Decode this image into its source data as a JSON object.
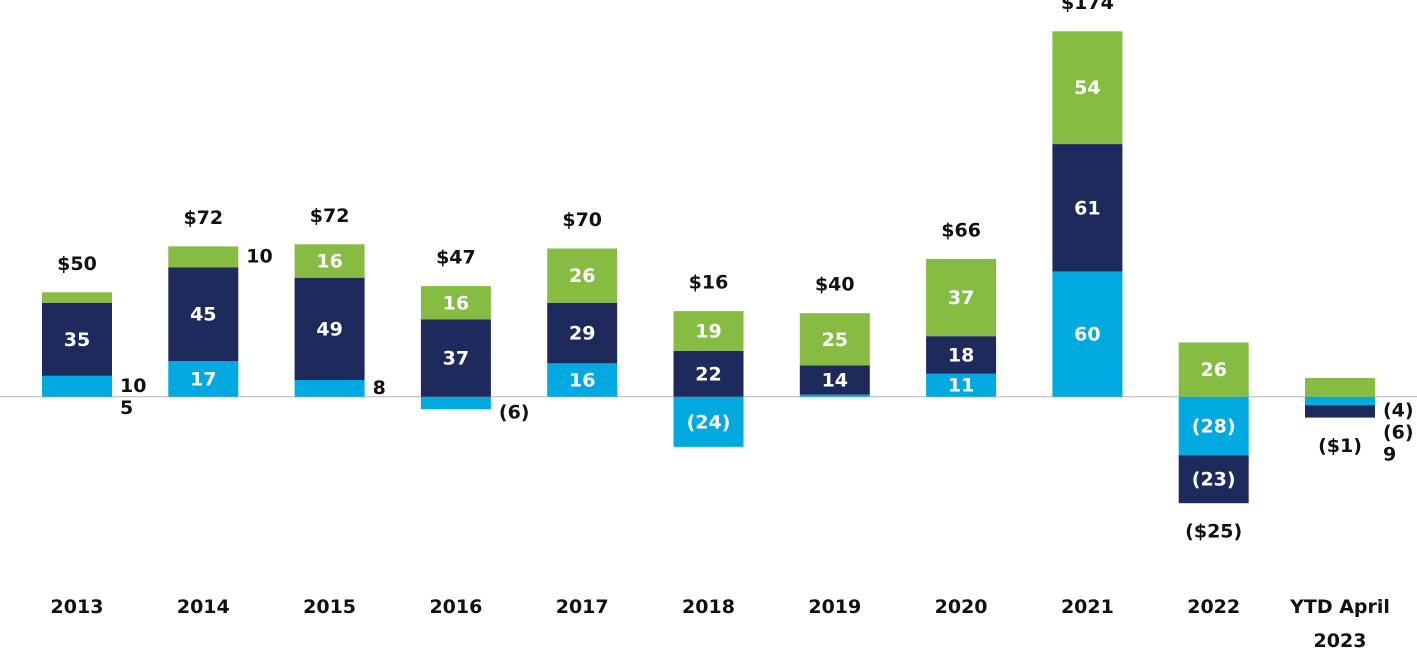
{
  "chart_data": {
    "type": "stacked-bar",
    "categories": [
      "2013",
      "2014",
      "2015",
      "2016",
      "2017",
      "2018",
      "2019",
      "2020",
      "2021",
      "2022",
      "YTD April 2023"
    ],
    "ylim": [
      -60,
      190
    ],
    "series": [
      {
        "color": "#00a9e0",
        "values": [
          10,
          17,
          8,
          -6,
          16,
          -24,
          1,
          11,
          60,
          -28,
          -4
        ],
        "value_labels": [
          "10",
          "17",
          "8",
          "(6)",
          "16",
          "(24)",
          null,
          "11",
          "60",
          "(28)",
          "(4)"
        ]
      },
      {
        "color": "#1f2a5c",
        "values": [
          35,
          45,
          49,
          37,
          29,
          22,
          14,
          18,
          61,
          -23,
          -6
        ],
        "value_labels": [
          "35",
          "45",
          "49",
          "37",
          "29",
          "22",
          "14",
          "18",
          "61",
          "(23)",
          "(6)"
        ]
      },
      {
        "color": "#86bc42",
        "values": [
          5,
          10,
          16,
          16,
          26,
          19,
          25,
          37,
          54,
          26,
          9
        ],
        "value_labels": [
          "5",
          "10",
          "16",
          "16",
          "26",
          "19",
          "25",
          "37",
          "54",
          "26",
          "9"
        ]
      }
    ],
    "totals": {
      "values": [
        50,
        72,
        72,
        47,
        70,
        16,
        40,
        66,
        174,
        -25,
        -1
      ],
      "value_labels": [
        "$50",
        "$72",
        "$72",
        "$47",
        "$70",
        "$16",
        "$40",
        "$66",
        "$174",
        "($25)",
        "($1)"
      ]
    }
  }
}
